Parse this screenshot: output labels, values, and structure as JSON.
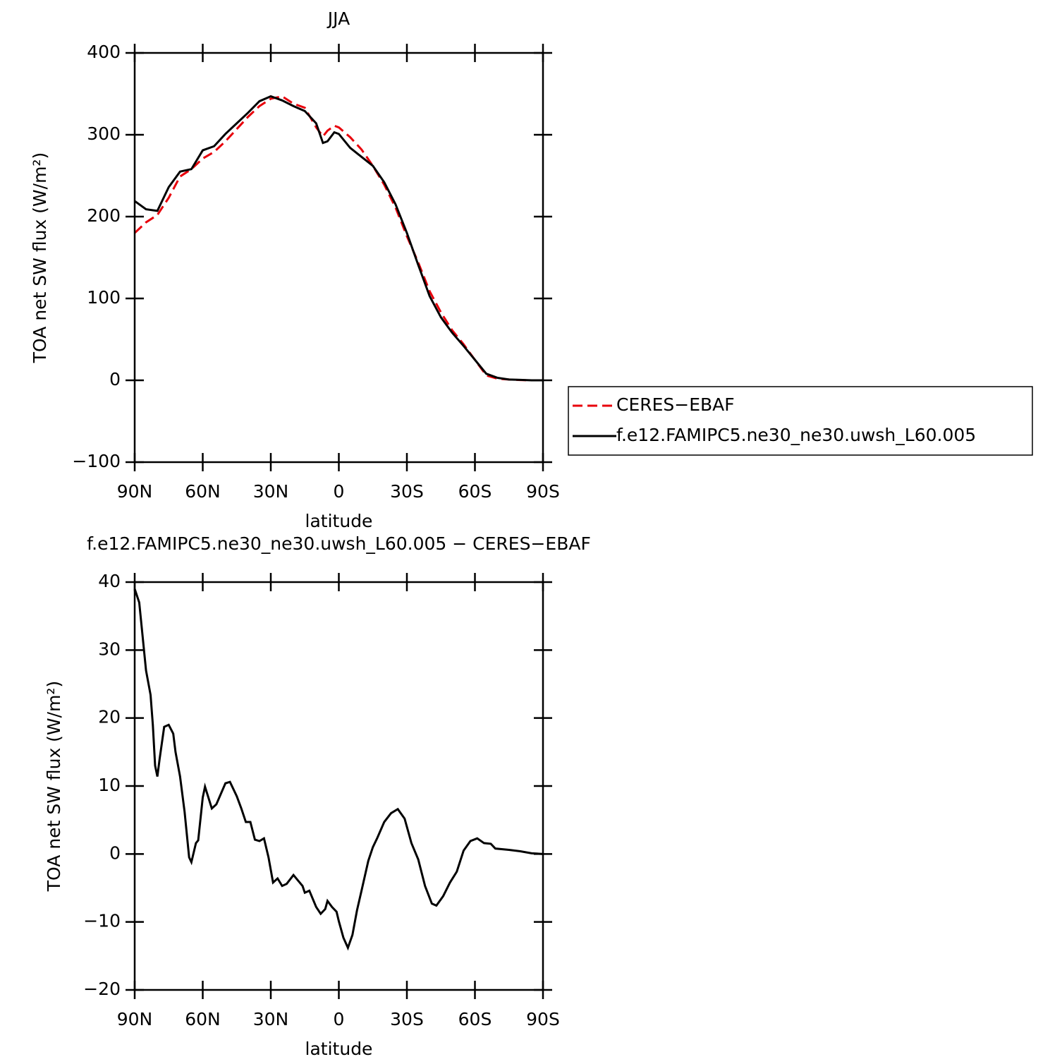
{
  "chart_data": [
    {
      "type": "line",
      "title": "JJA",
      "xlabel": "latitude",
      "ylabel": "TOA net SW flux (W/m²)",
      "x": [
        90,
        85,
        80,
        75,
        70,
        65,
        60,
        55,
        50,
        45,
        40,
        35,
        30,
        25,
        20,
        15,
        10,
        7,
        5,
        2,
        0,
        -5,
        -10,
        -15,
        -20,
        -25,
        -30,
        -35,
        -40,
        -45,
        -50,
        -55,
        -60,
        -65,
        -70,
        -75,
        -80,
        -85,
        -90
      ],
      "series": [
        {
          "name": "CERES−EBAF",
          "color": "#e8000b",
          "style": "dashed",
          "values": [
            180,
            193,
            202,
            223,
            249,
            258,
            271,
            279,
            292,
            307,
            322,
            335,
            344,
            347,
            338,
            333,
            309,
            298,
            305,
            311,
            309,
            297,
            282,
            262,
            239,
            211,
            176,
            144,
            109,
            83,
            61,
            44,
            25,
            6,
            2,
            1,
            0.3,
            0,
            0
          ]
        },
        {
          "name": "f.e12.FAMIPC5.ne30_ne30.uwsh_L60.005",
          "color": "#000000",
          "style": "solid",
          "values": [
            219,
            209,
            207,
            236,
            255,
            258,
            281,
            286,
            301,
            314,
            327,
            341,
            347,
            342,
            335,
            329,
            314,
            290,
            292,
            303,
            301,
            284,
            273,
            262,
            242,
            215,
            180,
            141,
            103,
            77,
            58,
            42,
            25,
            8,
            3,
            1,
            0.5,
            0,
            0
          ]
        }
      ],
      "xlim": [
        90,
        -90
      ],
      "xticks": [
        {
          "value": 90,
          "label": "90N"
        },
        {
          "value": 60,
          "label": "60N"
        },
        {
          "value": 30,
          "label": "30N"
        },
        0,
        {
          "value": -30,
          "label": "30S"
        },
        {
          "value": -60,
          "label": "60S"
        },
        {
          "value": -90,
          "label": "90S"
        }
      ],
      "ylim": [
        -100,
        400
      ],
      "yticks": [
        {
          "value": -100,
          "label": "−100"
        },
        0,
        100,
        200,
        300,
        400
      ],
      "legend": "right"
    },
    {
      "type": "line",
      "title": "f.e12.FAMIPC5.ne30_ne30.uwsh_L60.005 − CERES−EBAF",
      "xlabel": "latitude",
      "ylabel": "TOA net SW flux (W/m²)",
      "x": [
        90,
        88,
        85,
        83,
        82,
        81,
        80,
        79,
        77,
        75,
        73,
        72,
        70,
        68,
        66,
        65,
        63,
        62,
        60,
        59,
        56,
        54,
        50,
        48,
        45,
        43,
        41,
        39,
        37,
        35,
        33,
        31,
        29,
        27,
        25,
        23,
        20,
        18,
        16,
        15,
        13,
        10,
        8,
        6,
        5,
        3,
        1,
        0,
        -2,
        -4,
        -6,
        -8,
        -10,
        -13,
        -15,
        -17,
        -20,
        -23,
        -26,
        -29,
        -32,
        -35,
        -38,
        -41,
        -43,
        -46,
        -49,
        -52,
        -55,
        -58,
        -61,
        -64,
        -67,
        -69,
        -75,
        -80,
        -85,
        -90
      ],
      "series": [
        {
          "name": "f.e12.FAMIPC5.ne30_ne30.uwsh_L60.005 − CERES−EBAF",
          "color": "#000000",
          "style": "solid",
          "values": [
            39,
            37,
            27,
            23.4,
            19,
            13,
            11.4,
            14,
            18.7,
            19,
            17.7,
            15,
            11.4,
            6.2,
            -0.5,
            -1.2,
            1.6,
            2,
            8.3,
            9.9,
            6.7,
            7.3,
            10.4,
            10.6,
            8.5,
            6.7,
            4.7,
            4.7,
            2.1,
            1.9,
            2.3,
            -0.5,
            -4.2,
            -3.6,
            -4.7,
            -4.4,
            -3.1,
            -3.9,
            -4.7,
            -5.7,
            -5.4,
            -7.8,
            -8.8,
            -8.1,
            -6.9,
            -7.8,
            -8.5,
            -9.9,
            -12.3,
            -13.8,
            -11.9,
            -8.3,
            -5.4,
            -1,
            1,
            2.4,
            4.7,
            6,
            6.6,
            5.2,
            1.6,
            -0.8,
            -4.7,
            -7.3,
            -7.6,
            -6.2,
            -4.2,
            -2.6,
            0.5,
            1.9,
            2.3,
            1.6,
            1.5,
            0.8,
            0.6,
            0.4,
            0.1,
            0
          ]
        }
      ],
      "xlim": [
        90,
        -90
      ],
      "xticks": [
        {
          "value": 90,
          "label": "90N"
        },
        {
          "value": 60,
          "label": "60N"
        },
        {
          "value": 30,
          "label": "30N"
        },
        0,
        {
          "value": -30,
          "label": "30S"
        },
        {
          "value": -60,
          "label": "60S"
        },
        {
          "value": -90,
          "label": "90S"
        }
      ],
      "ylim": [
        -20,
        40
      ],
      "yticks": [
        {
          "value": -20,
          "label": "−20"
        },
        {
          "value": -10,
          "label": "−10"
        },
        0,
        10,
        20,
        30,
        40
      ]
    }
  ]
}
